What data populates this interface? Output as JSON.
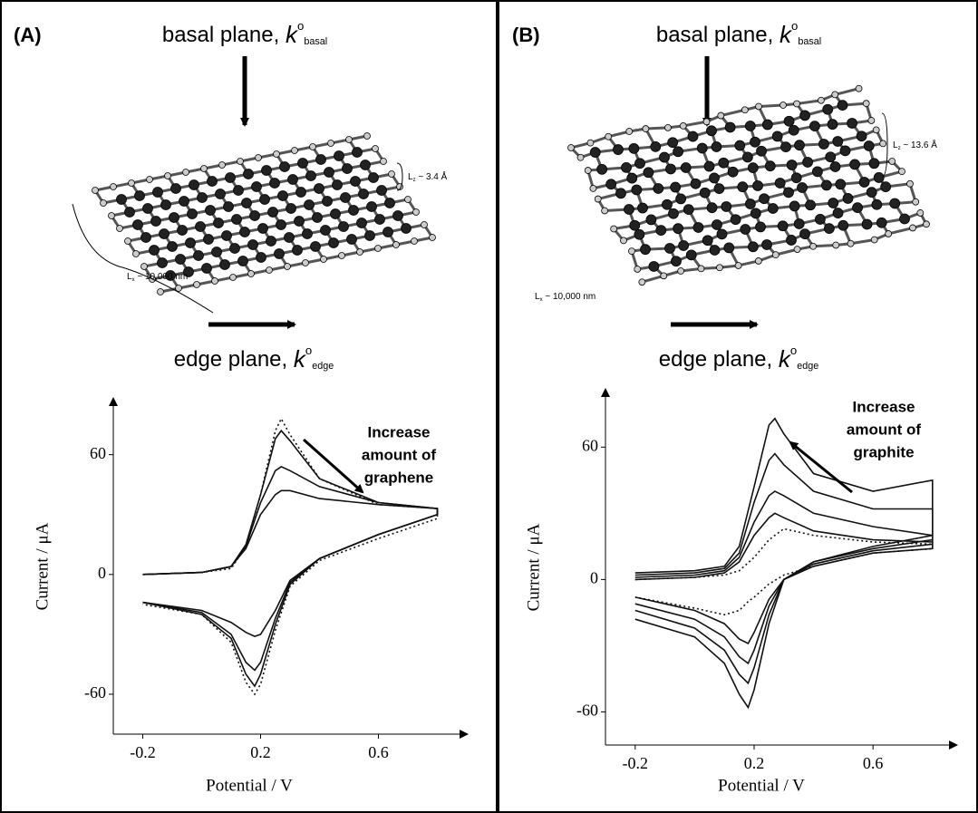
{
  "panels": [
    {
      "label": "(A)",
      "basal": [
        "basal plane, ",
        "k",
        "o",
        "basal"
      ],
      "edge": [
        "edge plane, ",
        "k",
        "o",
        "edge"
      ],
      "lz": [
        "L",
        "z",
        " ~ 3.4 Å"
      ],
      "lx": [
        "L",
        "x",
        " ~ 10,000 nm"
      ]
    },
    {
      "label": "(B)",
      "basal": [
        "basal plane, ",
        "k",
        "o",
        "basal"
      ],
      "edge": [
        "edge plane, ",
        "k",
        "o",
        "edge"
      ],
      "lz": [
        "L",
        "z",
        " ~ 13.6 Å"
      ],
      "lx": [
        "L",
        "x",
        " ~ 10,000 nm"
      ]
    }
  ],
  "chart_data": [
    {
      "type": "line",
      "x_label": "Potential / V",
      "y_label": "Current / μA",
      "annotation": [
        "Increase",
        "amount of",
        "graphene"
      ],
      "xlim": [
        -0.3,
        0.9
      ],
      "ylim": [
        -80,
        88
      ],
      "xticks": [
        -0.2,
        0.2,
        0.6
      ],
      "yticks": [
        -60,
        0,
        60
      ],
      "x": [
        -0.2,
        0,
        0.1,
        0.15,
        0.2,
        0.25,
        0.27,
        0.3,
        0.4,
        0.6,
        0.8,
        0.8,
        0.6,
        0.4,
        0.3,
        0.25,
        0.2,
        0.18,
        0.15,
        0.1,
        0,
        -0.2
      ],
      "series": [
        {
          "color": "#111",
          "dash": false,
          "values": [
            0,
            1,
            4,
            15,
            40,
            68,
            72,
            67,
            48,
            36,
            33,
            30,
            20,
            8,
            -5,
            -25,
            -50,
            -56,
            -50,
            -32,
            -20,
            -14
          ]
        },
        {
          "color": "#111",
          "dash": false,
          "values": [
            0,
            1,
            4,
            14,
            36,
            52,
            54,
            52,
            44,
            36,
            33,
            30,
            20,
            8,
            -4,
            -22,
            -44,
            -48,
            -44,
            -30,
            -19,
            -14
          ]
        },
        {
          "color": "#111",
          "dash": false,
          "values": [
            0,
            1,
            4,
            13,
            30,
            40,
            42,
            42,
            38,
            35,
            33,
            30,
            20,
            8,
            -3,
            -18,
            -30,
            -31,
            -29,
            -24,
            -18,
            -14
          ]
        },
        {
          "color": "#111",
          "dash": true,
          "values": [
            0,
            1,
            3,
            14,
            40,
            72,
            78,
            70,
            48,
            35,
            33,
            28,
            18,
            7,
            -6,
            -28,
            -55,
            -60,
            -54,
            -34,
            -20,
            -15
          ]
        }
      ]
    },
    {
      "type": "line",
      "x_label": "Potential / V",
      "y_label": "Current / μA",
      "annotation": [
        "Increase",
        "amount of",
        "graphite"
      ],
      "xlim": [
        -0.3,
        0.88
      ],
      "ylim": [
        -75,
        86
      ],
      "xticks": [
        -0.2,
        0.2,
        0.6
      ],
      "yticks": [
        -60,
        0,
        60
      ],
      "x": [
        -0.2,
        0,
        0.1,
        0.15,
        0.2,
        0.25,
        0.27,
        0.3,
        0.4,
        0.6,
        0.8,
        0.8,
        0.6,
        0.4,
        0.3,
        0.25,
        0.2,
        0.18,
        0.15,
        0.1,
        0,
        -0.2
      ],
      "series": [
        {
          "color": "#111",
          "dash": false,
          "values": [
            3,
            4,
            6,
            15,
            42,
            70,
            73,
            66,
            48,
            40,
            45,
            20,
            15,
            8,
            0,
            -20,
            -50,
            -58,
            -52,
            -38,
            -26,
            -18
          ]
        },
        {
          "color": "#111",
          "dash": false,
          "values": [
            2,
            3,
            5,
            12,
            35,
            54,
            57,
            52,
            40,
            32,
            32,
            18,
            14,
            8,
            0,
            -16,
            -40,
            -47,
            -43,
            -32,
            -22,
            -14
          ]
        },
        {
          "color": "#111",
          "dash": false,
          "values": [
            1,
            2,
            4,
            10,
            26,
            38,
            40,
            38,
            30,
            24,
            20,
            16,
            13,
            7,
            0,
            -12,
            -32,
            -38,
            -35,
            -26,
            -18,
            -11
          ]
        },
        {
          "color": "#111",
          "dash": false,
          "values": [
            0,
            1,
            3,
            8,
            20,
            28,
            30,
            28,
            22,
            18,
            17,
            14,
            12,
            6,
            0,
            -9,
            -24,
            -29,
            -27,
            -20,
            -14,
            -8
          ]
        },
        {
          "color": "#111",
          "dash": true,
          "values": [
            0,
            1,
            2,
            4,
            10,
            18,
            20,
            23,
            20,
            17,
            16,
            14,
            12,
            6,
            2,
            -2,
            -8,
            -10,
            -14,
            -16,
            -13,
            -8
          ]
        }
      ]
    }
  ]
}
